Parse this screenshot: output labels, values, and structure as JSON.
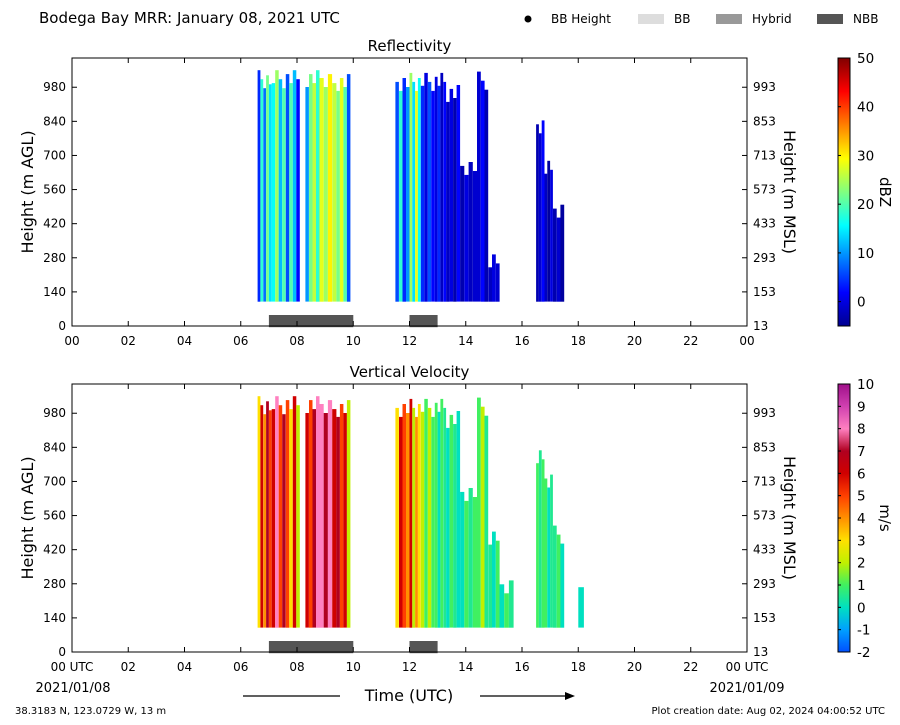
{
  "header": {
    "title": "Bodega Bay MRR:  January 08, 2021 UTC",
    "legend": [
      {
        "label": "BB Height",
        "symbol": "dot",
        "color": "#000000"
      },
      {
        "label": "BB",
        "symbol": "box",
        "color": "#dddddd"
      },
      {
        "label": "Hybrid",
        "symbol": "box",
        "color": "#999999"
      },
      {
        "label": "NBB",
        "symbol": "box",
        "color": "#555555"
      }
    ]
  },
  "footer": {
    "location": "38.3183 N, 123.0729 W, 13 m",
    "creation": "Plot creation date: Aug 02, 2024 04:00:52 UTC",
    "xlabel": "Time (UTC)",
    "date_start": "2021/01/08",
    "date_end": "2021/01/09"
  },
  "chart_data": [
    {
      "type": "heatmap",
      "title": "Reflectivity",
      "ylabel": "Height (m AGL)",
      "ylabel_right": "Height (m MSL)",
      "colorbar_label": "dBZ",
      "xlim": [
        0,
        24
      ],
      "ylim": [
        0,
        1100
      ],
      "x_ticks": [
        "00",
        "02",
        "04",
        "06",
        "08",
        "10",
        "12",
        "14",
        "16",
        "18",
        "20",
        "22",
        "00"
      ],
      "y_ticks": [
        0,
        140,
        280,
        420,
        560,
        700,
        840,
        980
      ],
      "y_ticks_right": [
        13,
        153,
        293,
        433,
        573,
        713,
        853,
        993
      ],
      "colorbar_range": [
        -5,
        50
      ],
      "colorbar_ticks": [
        0,
        10,
        20,
        30,
        40,
        50
      ],
      "colormap": [
        "#00008f",
        "#0000ff",
        "#0080ff",
        "#00ffff",
        "#80ff80",
        "#ffff00",
        "#ff8000",
        "#ff0000",
        "#800000"
      ],
      "echo_blocks": [
        {
          "start": 6.6,
          "end": 7.1,
          "top": 1050,
          "bottom": 100,
          "values": [
            4,
            18,
            8,
            22,
            14
          ]
        },
        {
          "start": 7.1,
          "end": 7.6,
          "top": 1050,
          "bottom": 100,
          "values": [
            16,
            24,
            12,
            20
          ]
        },
        {
          "start": 7.6,
          "end": 8.1,
          "top": 1050,
          "bottom": 100,
          "values": [
            6,
            20,
            12,
            2
          ]
        },
        {
          "start": 8.3,
          "end": 8.8,
          "top": 1050,
          "bottom": 100,
          "values": [
            10,
            22,
            26,
            18
          ]
        },
        {
          "start": 8.8,
          "end": 9.4,
          "top": 1050,
          "bottom": 100,
          "values": [
            28,
            24,
            30,
            26
          ]
        },
        {
          "start": 9.4,
          "end": 9.9,
          "top": 1050,
          "bottom": 100,
          "values": [
            22,
            28,
            20,
            6
          ]
        },
        {
          "start": 11.5,
          "end": 12.0,
          "top": 1050,
          "bottom": 100,
          "values": [
            6,
            18,
            4,
            10
          ]
        },
        {
          "start": 12.0,
          "end": 12.4,
          "top": 1050,
          "bottom": 100,
          "values": [
            24,
            14,
            28,
            16
          ]
        },
        {
          "start": 12.4,
          "end": 12.9,
          "top": 1050,
          "bottom": 100,
          "values": [
            4,
            0,
            6,
            2
          ]
        },
        {
          "start": 12.9,
          "end": 13.3,
          "top": 1050,
          "bottom": 100,
          "values": [
            0,
            4,
            -2,
            2
          ]
        },
        {
          "start": 13.3,
          "end": 13.8,
          "top": 1000,
          "bottom": 100,
          "values": [
            -2,
            0,
            -3,
            2
          ]
        },
        {
          "start": 13.8,
          "end": 14.4,
          "top": 700,
          "bottom": 100,
          "values": [
            -3,
            0,
            -2,
            -1
          ]
        },
        {
          "start": 14.4,
          "end": 14.8,
          "top": 1050,
          "bottom": 100,
          "values": [
            -1,
            2,
            -3
          ]
        },
        {
          "start": 14.8,
          "end": 15.2,
          "top": 300,
          "bottom": 100,
          "values": [
            -2,
            0,
            -1
          ]
        },
        {
          "start": 16.5,
          "end": 16.8,
          "top": 850,
          "bottom": 100,
          "values": [
            -3,
            -1,
            2
          ]
        },
        {
          "start": 16.8,
          "end": 17.1,
          "top": 700,
          "bottom": 100,
          "values": [
            -2,
            -4,
            0
          ]
        },
        {
          "start": 17.1,
          "end": 17.5,
          "top": 520,
          "bottom": 100,
          "values": [
            -3,
            -1,
            -4
          ]
        }
      ],
      "bright_band": [
        {
          "start": 7.0,
          "end": 10.0,
          "type": "NBB"
        },
        {
          "start": 12.0,
          "end": 13.0,
          "type": "NBB"
        }
      ]
    },
    {
      "type": "heatmap",
      "title": "Vertical Velocity",
      "ylabel": "Height (m AGL)",
      "ylabel_right": "Height (m MSL)",
      "colorbar_label": "m/s",
      "xlim": [
        0,
        24
      ],
      "ylim": [
        0,
        1100
      ],
      "x_ticks": [
        "00 UTC",
        "02",
        "04",
        "06",
        "08",
        "10",
        "12",
        "14",
        "16",
        "18",
        "20",
        "22",
        "00 UTC"
      ],
      "y_ticks": [
        0,
        140,
        280,
        420,
        560,
        700,
        840,
        980
      ],
      "y_ticks_right": [
        13,
        153,
        293,
        433,
        573,
        713,
        853,
        993
      ],
      "colorbar_range": [
        -2,
        10
      ],
      "colorbar_ticks": [
        -2,
        -1,
        0,
        1,
        2,
        3,
        4,
        5,
        6,
        7,
        8,
        9,
        10
      ],
      "colormap": [
        "#0050ff",
        "#00a0ff",
        "#00e0c0",
        "#40f060",
        "#c0f000",
        "#ffe000",
        "#ff9000",
        "#ff4000",
        "#d00000",
        "#b00020",
        "#ff80c0",
        "#d040b0",
        "#a0108a"
      ],
      "echo_blocks": [
        {
          "start": 6.6,
          "end": 7.1,
          "top": 1050,
          "bottom": 100,
          "values": [
            3,
            6,
            4,
            7,
            5
          ]
        },
        {
          "start": 7.1,
          "end": 7.6,
          "top": 1050,
          "bottom": 100,
          "values": [
            6,
            8,
            5,
            7
          ]
        },
        {
          "start": 7.6,
          "end": 8.1,
          "top": 1050,
          "bottom": 100,
          "values": [
            5,
            3,
            6,
            2
          ]
        },
        {
          "start": 8.3,
          "end": 8.8,
          "top": 1050,
          "bottom": 100,
          "values": [
            6,
            5,
            7,
            8
          ]
        },
        {
          "start": 8.8,
          "end": 9.4,
          "top": 1050,
          "bottom": 100,
          "values": [
            8,
            7,
            8,
            6
          ]
        },
        {
          "start": 9.4,
          "end": 9.9,
          "top": 1050,
          "bottom": 100,
          "values": [
            7,
            5,
            6,
            2
          ]
        },
        {
          "start": 11.5,
          "end": 12.0,
          "top": 1050,
          "bottom": 100,
          "values": [
            3,
            6,
            5,
            4
          ]
        },
        {
          "start": 12.0,
          "end": 12.4,
          "top": 1050,
          "bottom": 100,
          "values": [
            6,
            2,
            4,
            3
          ]
        },
        {
          "start": 12.4,
          "end": 12.9,
          "top": 1050,
          "bottom": 100,
          "values": [
            2,
            1,
            2,
            1
          ]
        },
        {
          "start": 12.9,
          "end": 13.3,
          "top": 1050,
          "bottom": 100,
          "values": [
            1,
            0,
            1,
            0.5
          ]
        },
        {
          "start": 13.3,
          "end": 13.8,
          "top": 1000,
          "bottom": 100,
          "values": [
            0,
            1,
            0.5,
            0
          ]
        },
        {
          "start": 13.8,
          "end": 14.4,
          "top": 700,
          "bottom": 100,
          "values": [
            0,
            1,
            0.5,
            1
          ]
        },
        {
          "start": 14.4,
          "end": 14.8,
          "top": 1050,
          "bottom": 100,
          "values": [
            1,
            2,
            0.5
          ]
        },
        {
          "start": 14.8,
          "end": 15.2,
          "top": 500,
          "bottom": 100,
          "values": [
            0.5,
            0,
            1
          ]
        },
        {
          "start": 15.2,
          "end": 15.7,
          "top": 300,
          "bottom": 100,
          "values": [
            0,
            1,
            0.5
          ]
        },
        {
          "start": 16.5,
          "end": 16.8,
          "top": 850,
          "bottom": 100,
          "values": [
            1,
            0.5,
            1
          ]
        },
        {
          "start": 16.8,
          "end": 17.1,
          "top": 750,
          "bottom": 100,
          "values": [
            1,
            0,
            0.5
          ]
        },
        {
          "start": 17.1,
          "end": 17.5,
          "top": 520,
          "bottom": 100,
          "values": [
            0.5,
            1,
            0
          ]
        },
        {
          "start": 18.0,
          "end": 18.2,
          "top": 320,
          "bottom": 100,
          "values": [
            0
          ]
        }
      ],
      "bright_band": [
        {
          "start": 7.0,
          "end": 10.0,
          "type": "NBB"
        },
        {
          "start": 12.0,
          "end": 13.0,
          "type": "NBB"
        }
      ]
    }
  ]
}
